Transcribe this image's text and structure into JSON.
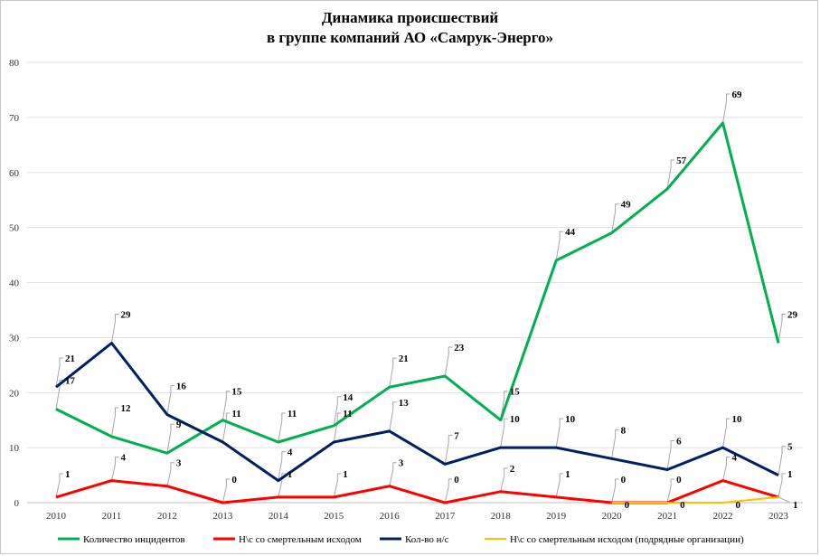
{
  "chart_data": {
    "type": "line",
    "title": "Динамика происшествий",
    "subtitle": "в группе компаний АО «Самрук-Энерго»",
    "xlabel": "",
    "ylabel": "",
    "ylim": [
      0,
      80
    ],
    "yticks": [
      0,
      10,
      20,
      30,
      40,
      50,
      60,
      70,
      80
    ],
    "grid": true,
    "legend_position": "bottom",
    "x": [
      "2010",
      "2011",
      "2012",
      "2013",
      "2014",
      "2015",
      "2016",
      "2017",
      "2018",
      "2019",
      "2020",
      "2021",
      "2022",
      "2023"
    ],
    "series": [
      {
        "name": "Количество инцидентов",
        "color": "#00b050",
        "values": [
          17,
          12,
          9,
          15,
          11,
          14,
          21,
          23,
          15,
          44,
          49,
          57,
          69,
          29
        ]
      },
      {
        "name": "Н\\с со смертельным исходом",
        "color": "#ff0000",
        "values": [
          1,
          4,
          3,
          0,
          1,
          1,
          3,
          0,
          2,
          1,
          0,
          0,
          4,
          1
        ]
      },
      {
        "name": "Кол-во н/с",
        "color": "#002060",
        "values": [
          21,
          29,
          16,
          11,
          4,
          11,
          13,
          7,
          10,
          10,
          8,
          6,
          10,
          5
        ]
      },
      {
        "name": "Н\\с со смертельным исходом (подрядные организации)",
        "color": "#ffc000",
        "x_start": "2020",
        "values": [
          null,
          null,
          null,
          null,
          null,
          null,
          null,
          null,
          null,
          null,
          0,
          0,
          0,
          1
        ]
      }
    ]
  }
}
